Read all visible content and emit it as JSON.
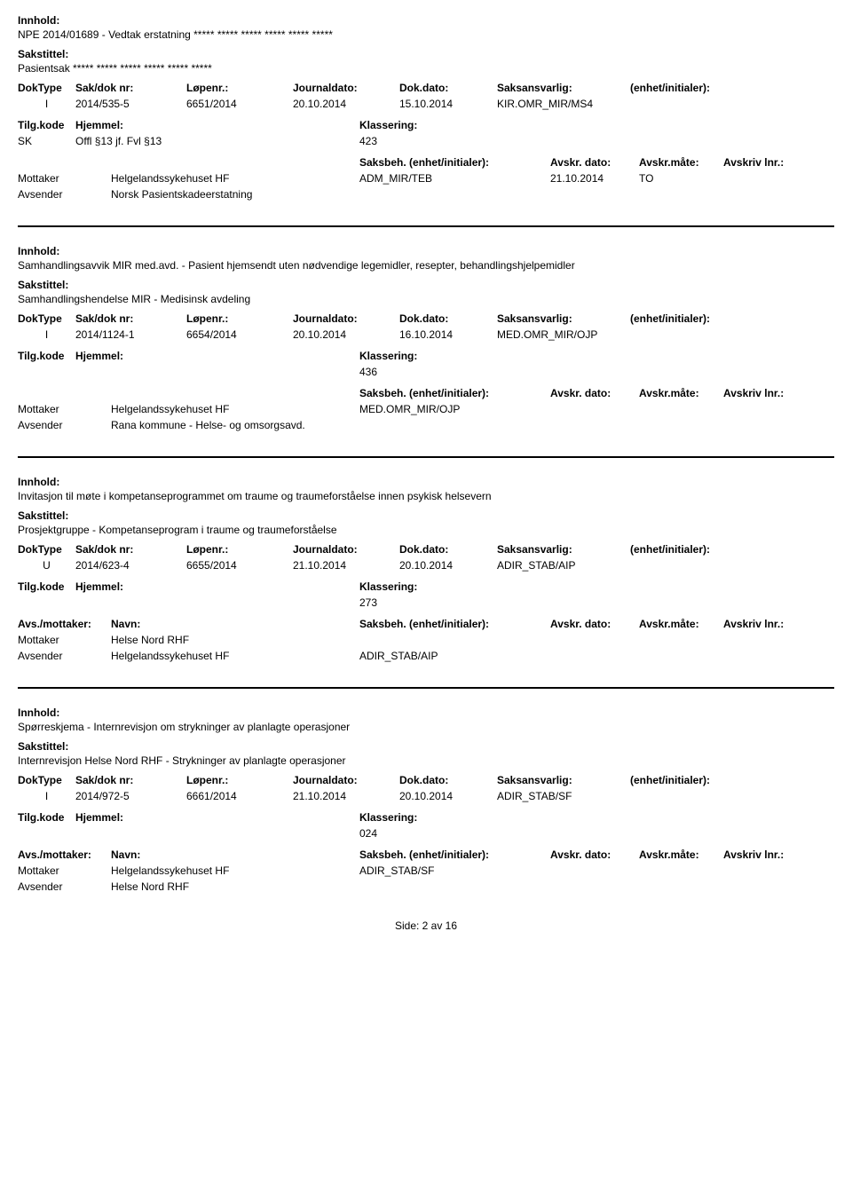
{
  "labels": {
    "innhold": "Innhold:",
    "sakstittel": "Sakstittel:",
    "doktype": "DokType",
    "sakdok": "Sak/dok nr:",
    "lopenr": "Løpenr.:",
    "jdato": "Journaldato:",
    "ddato": "Dok.dato:",
    "saksansv": "Saksansvarlig:",
    "enhet": "(enhet/initialer):",
    "tilg": "Tilg.kode",
    "hjemmel": "Hjemmel:",
    "klass": "Klassering:",
    "avsmot": "Avs./mottaker:",
    "navn": "Navn:",
    "saksbeh": "Saksbeh.",
    "saksbeh_e": "(enhet/initialer):",
    "adato": "Avskr. dato:",
    "amate": "Avskr.måte:",
    "alnr": "Avskriv lnr.:",
    "mottaker": "Mottaker",
    "avsender": "Avsender"
  },
  "records": [
    {
      "innhold": "NPE 2014/01689 - Vedtak erstatning ***** ***** ***** ***** ***** *****",
      "sakstittel": "Pasientsak ***** ***** ***** ***** ***** *****",
      "doktype": "I",
      "sakdok": "2014/535-5",
      "lopenr": "6651/2014",
      "jdato": "20.10.2014",
      "ddato": "15.10.2014",
      "saksansv": "KIR.OMR_MIR/MS4",
      "tilg": "SK",
      "hjemmel": "Offl §13 jf. Fvl §13",
      "klass": "423",
      "show_avsm_header": false,
      "parties": [
        {
          "role": "Mottaker",
          "name": "Helgelandssykehuset HF",
          "unit": "ADM_MIR/TEB",
          "d1": "21.10.2014",
          "d2": "TO",
          "d3": ""
        },
        {
          "role": "Avsender",
          "name": "Norsk Pasientskadeerstatning",
          "unit": "",
          "d1": "",
          "d2": "",
          "d3": ""
        }
      ]
    },
    {
      "innhold": "Samhandlingsavvik MIR med.avd. - Pasient hjemsendt uten nødvendige legemidler, resepter, behandlingshjelpemidler",
      "sakstittel": "Samhandlingshendelse MIR - Medisinsk avdeling",
      "doktype": "I",
      "sakdok": "2014/1124-1",
      "lopenr": "6654/2014",
      "jdato": "20.10.2014",
      "ddato": "16.10.2014",
      "saksansv": "MED.OMR_MIR/OJP",
      "tilg": "",
      "hjemmel": "",
      "klass": "436",
      "show_avsm_header": false,
      "parties": [
        {
          "role": "Mottaker",
          "name": "Helgelandssykehuset HF",
          "unit": "MED.OMR_MIR/OJP",
          "d1": "",
          "d2": "",
          "d3": ""
        },
        {
          "role": "Avsender",
          "name": "Rana kommune - Helse- og omsorgsavd.",
          "unit": "",
          "d1": "",
          "d2": "",
          "d3": ""
        }
      ]
    },
    {
      "innhold": "Invitasjon til møte i  kompetanseprogrammet om traume og traumeforståelse innen psykisk helsevern",
      "sakstittel": "Prosjektgruppe - Kompetanseprogram i traume og traumeforståelse",
      "doktype": "U",
      "sakdok": "2014/623-4",
      "lopenr": "6655/2014",
      "jdato": "21.10.2014",
      "ddato": "20.10.2014",
      "saksansv": "ADIR_STAB/AIP",
      "tilg": "",
      "hjemmel": "",
      "klass": "273",
      "show_avsm_header": true,
      "parties": [
        {
          "role": "Mottaker",
          "name": "Helse Nord RHF",
          "unit": "",
          "d1": "",
          "d2": "",
          "d3": ""
        },
        {
          "role": "Avsender",
          "name": "Helgelandssykehuset HF",
          "unit": "ADIR_STAB/AIP",
          "d1": "",
          "d2": "",
          "d3": ""
        }
      ]
    },
    {
      "innhold": "Spørreskjema - Internrevisjon om strykninger av planlagte operasjoner",
      "sakstittel": "Internrevisjon Helse Nord RHF - Strykninger av planlagte operasjoner",
      "doktype": "I",
      "sakdok": "2014/972-5",
      "lopenr": "6661/2014",
      "jdato": "21.10.2014",
      "ddato": "20.10.2014",
      "saksansv": "ADIR_STAB/SF",
      "tilg": "",
      "hjemmel": "",
      "klass": "024",
      "show_avsm_header": true,
      "parties": [
        {
          "role": "Mottaker",
          "name": "Helgelandssykehuset HF",
          "unit": "ADIR_STAB/SF",
          "d1": "",
          "d2": "",
          "d3": ""
        },
        {
          "role": "Avsender",
          "name": "Helse Nord RHF",
          "unit": "",
          "d1": "",
          "d2": "",
          "d3": ""
        }
      ]
    }
  ],
  "footer": "Side: 2 av 16"
}
